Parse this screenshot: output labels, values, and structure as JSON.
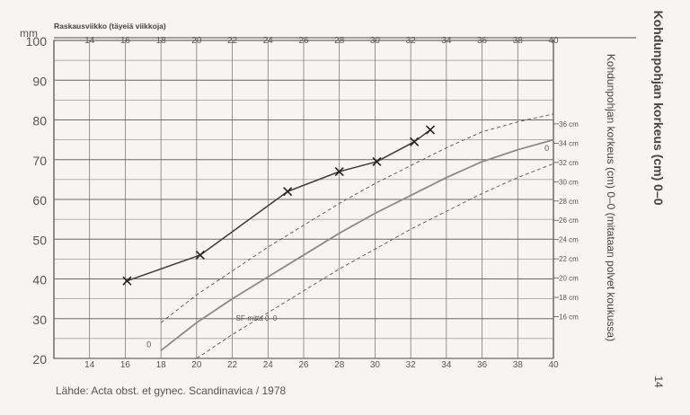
{
  "page": {
    "side_title": "Kohdunpohjan korkeus (cm) 0–0",
    "side_subtitle": "Kohdunpohjan korkeus (cm) 0–0 (mitataan polvet koukussa)",
    "page_number": "14",
    "source": "Lähde: Acta obst. et gynec. Scandinavica / 1978"
  },
  "chart_data": {
    "type": "line",
    "top_axis_label": "Raskausviikko (täyeiä viikkoja)",
    "y_unit": "mm",
    "x_ticks": [
      14,
      16,
      18,
      20,
      22,
      24,
      26,
      28,
      30,
      32,
      34,
      36,
      38,
      40
    ],
    "xlim": [
      12,
      40
    ],
    "y_ticks": [
      20,
      30,
      40,
      50,
      60,
      70,
      80,
      90,
      100
    ],
    "ylim": [
      20,
      100
    ],
    "grid": true,
    "right_scale_ticks": [
      "36 cm",
      "34 cm",
      "32 cm",
      "30 cm",
      "28 cm",
      "26 cm",
      "24 cm",
      "22 cm",
      "20 cm",
      "18 cm",
      "16 cm"
    ],
    "right_scale_values": [
      36,
      34,
      32,
      30,
      28,
      26,
      24,
      22,
      20,
      18,
      16
    ],
    "right_scale_map": {
      "cm": [
        16,
        36
      ],
      "y": [
        30.5,
        79
      ]
    },
    "annotations": {
      "sf_label": "SF-mitta 0–0",
      "zero_left": "0",
      "zero_right": "0"
    },
    "series": [
      {
        "style": "measured",
        "color": "#3a3a3a",
        "x": [
          16.1,
          20.2,
          25.1,
          28.0,
          30.1,
          32.2,
          33.1
        ],
        "y": [
          39.5,
          46,
          62,
          67,
          69.5,
          74.5,
          77.5
        ]
      },
      {
        "style": "median",
        "color": "#8a8a8a",
        "x": [
          18,
          20,
          22,
          24,
          26,
          28,
          30,
          32,
          34,
          36,
          38,
          40
        ],
        "y": [
          22,
          29,
          35,
          40.5,
          46,
          51.5,
          56.5,
          61,
          65.5,
          69.5,
          72.5,
          75
        ]
      },
      {
        "style": "upper",
        "color": "#555555",
        "x": [
          18,
          20,
          22,
          24,
          26,
          28,
          30,
          32,
          34,
          36,
          38,
          40
        ],
        "y": [
          29,
          36,
          42,
          48,
          53.5,
          59,
          64,
          68.5,
          73,
          77,
          79.5,
          81.5
        ]
      },
      {
        "style": "lower",
        "color": "#555555",
        "x": [
          20,
          22,
          24,
          26,
          28,
          30,
          32,
          34,
          36,
          38,
          40
        ],
        "y": [
          20,
          26,
          31.5,
          37,
          42.5,
          47.5,
          52.5,
          57,
          61.5,
          65.5,
          69
        ]
      }
    ]
  }
}
